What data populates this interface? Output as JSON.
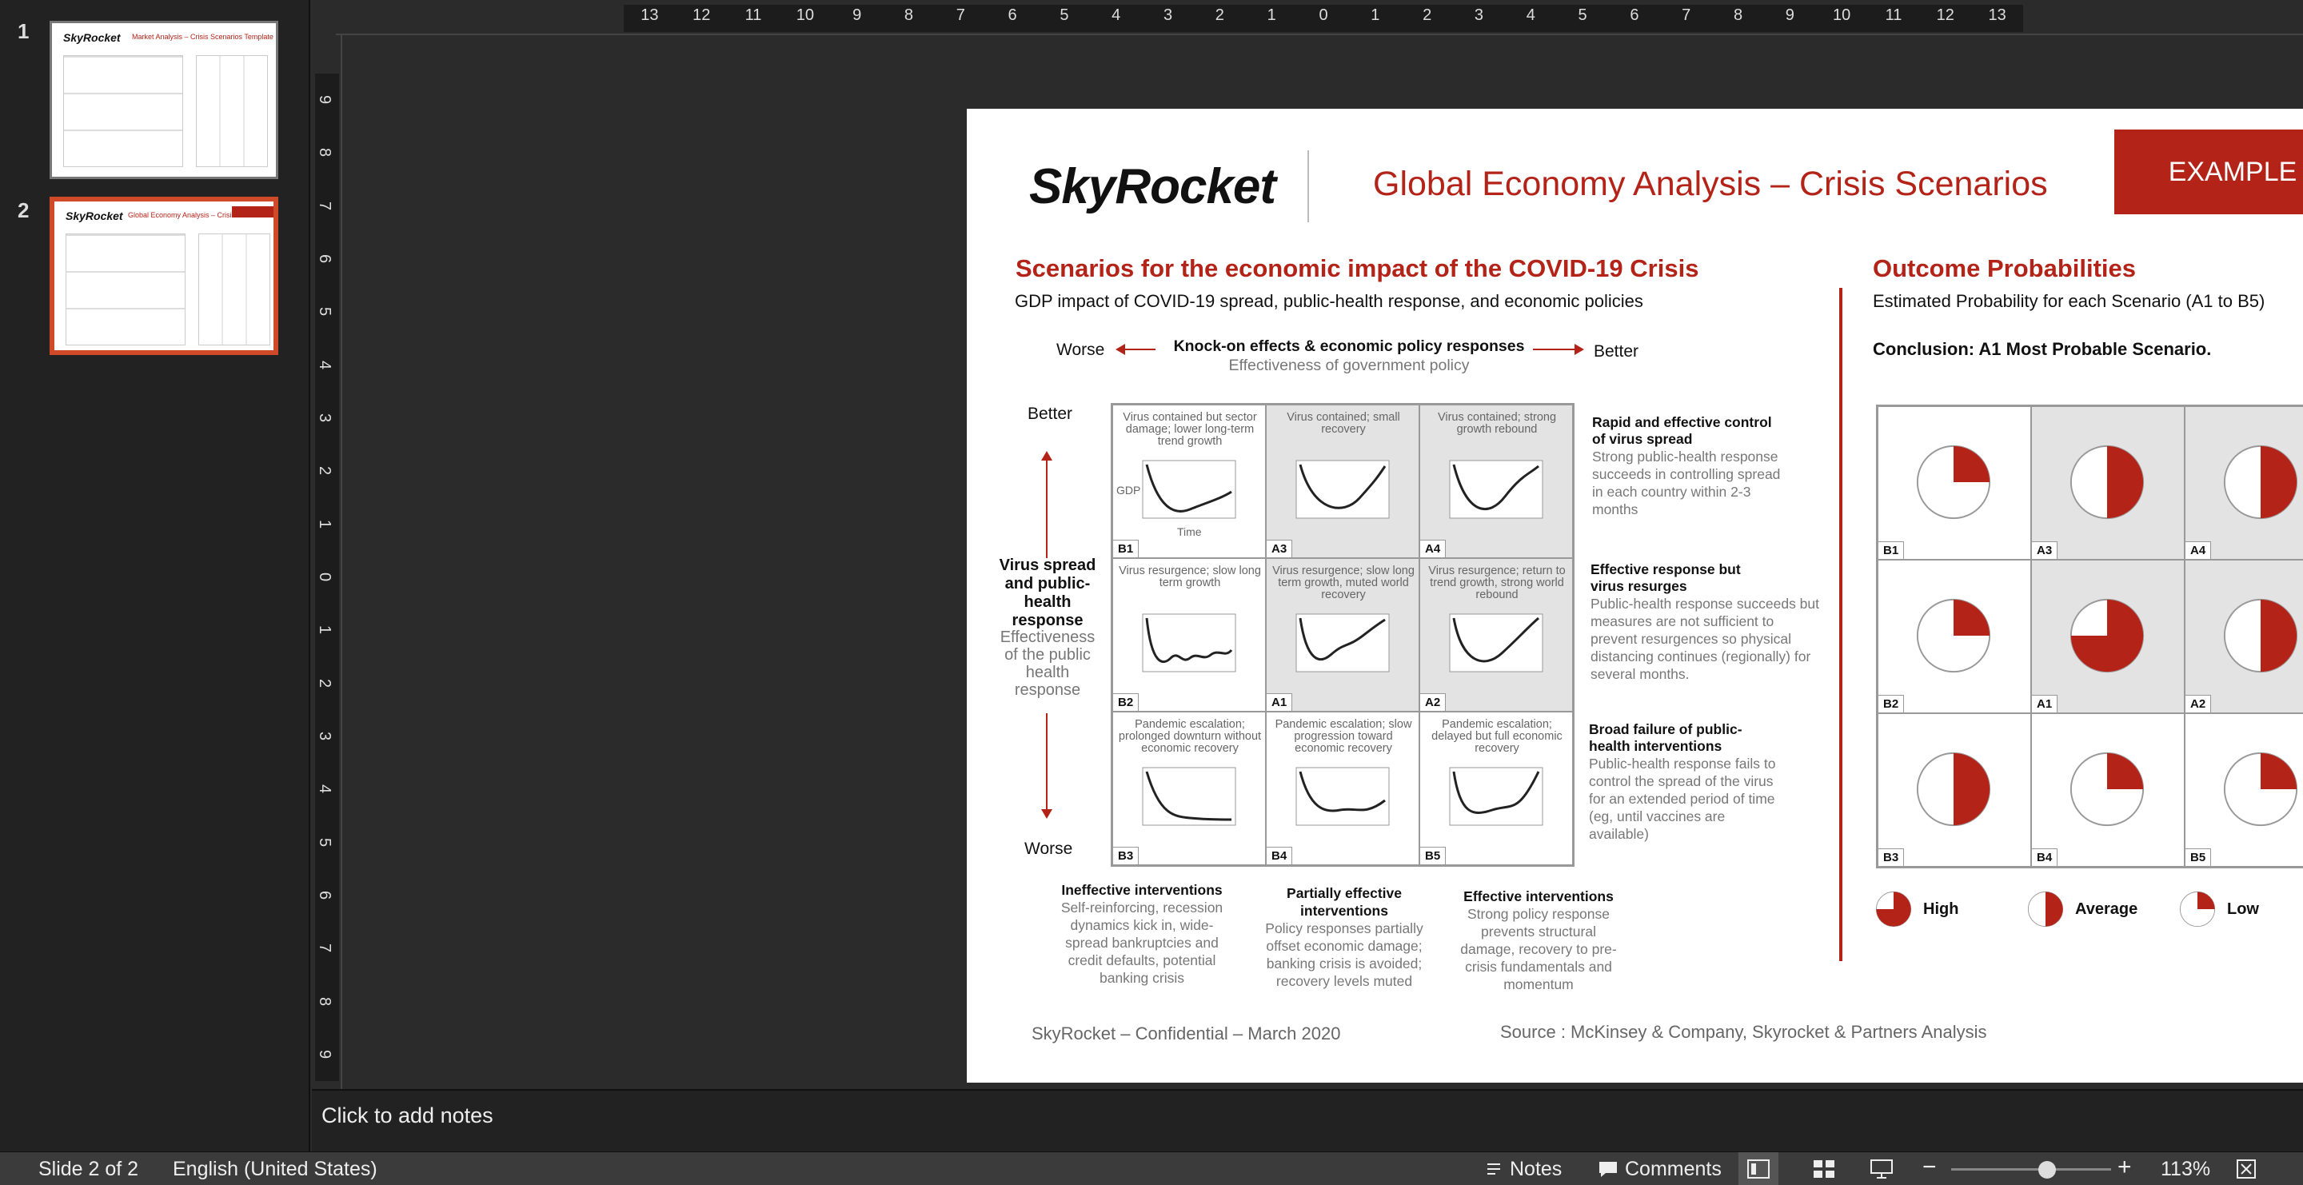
{
  "thumbnails": [
    {
      "number": "1",
      "title": "Market Analysis – Crisis Scenarios Template"
    },
    {
      "number": "2",
      "title": "Global Economy Analysis – Crisis Scenarios"
    }
  ],
  "ruler": {
    "top_labels": [
      "13",
      "12",
      "11",
      "10",
      "9",
      "8",
      "7",
      "6",
      "5",
      "4",
      "3",
      "2",
      "1",
      "0",
      "1",
      "2",
      "3",
      "4",
      "5",
      "6",
      "7",
      "8",
      "9",
      "10",
      "11",
      "12",
      "13"
    ],
    "left_labels": [
      "9",
      "8",
      "7",
      "6",
      "5",
      "4",
      "3",
      "2",
      "1",
      "0",
      "1",
      "2",
      "3",
      "4",
      "5",
      "6",
      "7",
      "8",
      "9"
    ]
  },
  "slide": {
    "logo": {
      "text": "SkyRocket"
    },
    "header_title": "Global Economy Analysis – Crisis Scenarios",
    "badge": "EXAMPLE",
    "left": {
      "title": "Scenarios for the economic impact of the COVID-19 Crisis",
      "subtitle": "GDP impact of COVID-19 spread, public-health response, and economic policies",
      "axis_worse": "Worse",
      "axis_better": "Better",
      "axis_title": "Knock-on effects & economic policy responses",
      "axis_subtitle": "Effectiveness of government policy",
      "v_better": "Better",
      "v_worse": "Worse",
      "v_title": "Virus spread and public-health response",
      "v_subtitle": "Effectiveness of the public health response",
      "gdp_label": "GDP",
      "time_label": "Time",
      "cells": [
        {
          "tag": "B1",
          "caption": "Virus contained but sector damage; lower long-term trend growth"
        },
        {
          "tag": "A3",
          "caption": "Virus contained; small recovery"
        },
        {
          "tag": "A4",
          "caption": "Virus contained; strong growth rebound"
        },
        {
          "tag": "B2",
          "caption": "Virus resurgence; slow long term growth"
        },
        {
          "tag": "A1",
          "caption": "Virus resurgence; slow long term growth, muted world recovery"
        },
        {
          "tag": "A2",
          "caption": "Virus resurgence; return to trend growth, strong world rebound"
        },
        {
          "tag": "B3",
          "caption": "Pandemic escalation; prolonged downturn without economic recovery"
        },
        {
          "tag": "B4",
          "caption": "Pandemic escalation; slow progression toward economic recovery"
        },
        {
          "tag": "B5",
          "caption": "Pandemic escalation; delayed but full economic recovery"
        }
      ],
      "row_desc": [
        {
          "head": "Rapid and effective control of virus spread",
          "body": "Strong public-health response succeeds in controlling spread in each country within 2-3 months"
        },
        {
          "head": "Effective response but virus resurges",
          "body": "Public-health response succeeds but measures are not sufficient to prevent resurgences so physical distancing continues (regionally) for several months."
        },
        {
          "head": "Broad failure of public-health interventions",
          "body": "Public-health response fails to control the spread of the virus for an extended period of time (eg, until vaccines are available)"
        }
      ],
      "col_desc": [
        {
          "head": "Ineffective interventions",
          "body": "Self-reinforcing, recession dynamics kick in, wide-spread bankruptcies and credit defaults, potential banking crisis"
        },
        {
          "head": "Partially effective interventions",
          "body": "Policy responses partially offset economic damage; banking crisis is avoided; recovery levels muted"
        },
        {
          "head": "Effective interventions",
          "body": "Strong policy response prevents structural damage, recovery to pre-crisis fundamentals and momentum"
        }
      ]
    },
    "right": {
      "title": "Outcome Probabilities",
      "subtitle": "Estimated Probability for each Scenario (A1 to B5)",
      "conclusion": "Conclusion: A1 Most Probable Scenario.",
      "pies": [
        {
          "tag": "B1",
          "fraction": 0.25
        },
        {
          "tag": "A3",
          "fraction": 0.5
        },
        {
          "tag": "A4",
          "fraction": 0.5
        },
        {
          "tag": "B2",
          "fraction": 0.25
        },
        {
          "tag": "A1",
          "fraction": 0.75
        },
        {
          "tag": "A2",
          "fraction": 0.5
        },
        {
          "tag": "B3",
          "fraction": 0.5
        },
        {
          "tag": "B4",
          "fraction": 0.25
        },
        {
          "tag": "B5",
          "fraction": 0.25
        }
      ],
      "legend": [
        {
          "label": "High",
          "fraction": 0.75
        },
        {
          "label": "Average",
          "fraction": 0.5
        },
        {
          "label": "Low",
          "fraction": 0.25
        }
      ]
    },
    "footer_left": "SkyRocket – Confidential – March 2020",
    "footer_right": "Source : McKinsey & Company, Skyrocket & Partners Analysis"
  },
  "notes_placeholder": "Click to add notes",
  "status": {
    "slide_info": "Slide 2 of 2",
    "language": "English (United States)",
    "notes_label": "Notes",
    "comments_label": "Comments",
    "zoom": "113%",
    "zoom_level": 0.6
  },
  "colors": {
    "accent": "#b42318",
    "workspace": "#2b2b2b",
    "selection": "#d04a2a"
  }
}
